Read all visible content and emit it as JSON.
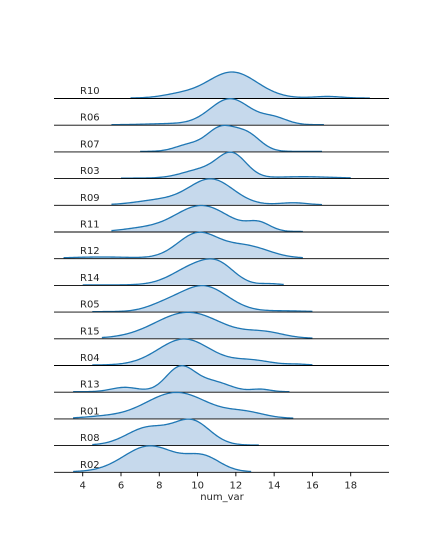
{
  "chart_data": {
    "type": "ridgeline",
    "xlabel": "num_var",
    "xlim": [
      2.5,
      20
    ],
    "x_ticks": [
      "4",
      "6",
      "8",
      "10",
      "12",
      "14",
      "16",
      "18"
    ],
    "x_tick_values": [
      4,
      6,
      8,
      10,
      12,
      14,
      16,
      18
    ],
    "series_color": "#1f77b4",
    "fill_color": "#c6d9ec",
    "baseline_color": "#000000",
    "rows": [
      {
        "label": "R10",
        "range": [
          6.5,
          19.0
        ],
        "components": [
          [
            11.8,
            1.3,
            1.0
          ],
          [
            9.0,
            0.9,
            0.12
          ],
          [
            16.8,
            0.7,
            0.06
          ]
        ]
      },
      {
        "label": "R06",
        "range": [
          5.5,
          16.6
        ],
        "components": [
          [
            11.7,
            1.05,
            1.0
          ],
          [
            14.0,
            0.7,
            0.25
          ],
          [
            8.5,
            1.2,
            0.04
          ]
        ]
      },
      {
        "label": "R07",
        "range": [
          7.0,
          16.5
        ],
        "components": [
          [
            11.2,
            0.75,
            0.82
          ],
          [
            12.6,
            0.7,
            0.58
          ],
          [
            9.5,
            0.7,
            0.22
          ]
        ]
      },
      {
        "label": "R03",
        "range": [
          6.0,
          18.0
        ],
        "components": [
          [
            11.8,
            0.75,
            1.0
          ],
          [
            10.2,
            1.0,
            0.35
          ],
          [
            15.5,
            1.4,
            0.06
          ]
        ]
      },
      {
        "label": "R09",
        "range": [
          5.5,
          16.5
        ],
        "components": [
          [
            10.7,
            1.15,
            1.0
          ],
          [
            8.0,
            1.2,
            0.18
          ],
          [
            15.0,
            0.7,
            0.08
          ]
        ]
      },
      {
        "label": "R11",
        "range": [
          5.5,
          15.5
        ],
        "components": [
          [
            10.2,
            1.4,
            1.0
          ],
          [
            13.2,
            0.6,
            0.3
          ],
          [
            7.0,
            1.0,
            0.1
          ]
        ]
      },
      {
        "label": "R12",
        "range": [
          3.0,
          15.5
        ],
        "components": [
          [
            10.0,
            1.05,
            1.0
          ],
          [
            12.5,
            1.2,
            0.5
          ],
          [
            5.0,
            1.5,
            0.05
          ]
        ]
      },
      {
        "label": "R14",
        "range": [
          4.0,
          14.5
        ],
        "components": [
          [
            10.0,
            1.2,
            0.85
          ],
          [
            11.2,
            0.8,
            0.5
          ],
          [
            13.8,
            0.5,
            0.05
          ]
        ]
      },
      {
        "label": "R05",
        "range": [
          4.5,
          16.0
        ],
        "components": [
          [
            10.3,
            1.25,
            1.0
          ],
          [
            8.2,
            0.9,
            0.2
          ],
          [
            14.5,
            1.0,
            0.03
          ]
        ]
      },
      {
        "label": "R15",
        "range": [
          5.0,
          16.0
        ],
        "components": [
          [
            9.5,
            1.7,
            1.0
          ],
          [
            13.5,
            1.0,
            0.22
          ]
        ]
      },
      {
        "label": "R04",
        "range": [
          4.5,
          16.0
        ],
        "components": [
          [
            9.3,
            1.35,
            1.0
          ],
          [
            12.8,
            1.0,
            0.18
          ],
          [
            15.2,
            0.5,
            0.03
          ]
        ]
      },
      {
        "label": "R13",
        "range": [
          3.5,
          14.8
        ],
        "components": [
          [
            9.1,
            0.75,
            1.0
          ],
          [
            6.2,
            0.7,
            0.18
          ],
          [
            13.3,
            0.5,
            0.1
          ],
          [
            10.8,
            0.9,
            0.4
          ]
        ]
      },
      {
        "label": "R01",
        "range": [
          3.5,
          15.0
        ],
        "components": [
          [
            8.9,
            1.6,
            1.0
          ],
          [
            12.5,
            1.0,
            0.22
          ],
          [
            5.0,
            1.0,
            0.06
          ]
        ]
      },
      {
        "label": "R08",
        "range": [
          4.5,
          13.2
        ],
        "components": [
          [
            9.7,
            0.95,
            0.85
          ],
          [
            7.4,
            1.1,
            0.62
          ]
        ]
      },
      {
        "label": "R02",
        "range": [
          3.5,
          12.8
        ],
        "components": [
          [
            7.5,
            1.35,
            1.0
          ],
          [
            10.3,
            0.9,
            0.55
          ]
        ]
      }
    ]
  }
}
